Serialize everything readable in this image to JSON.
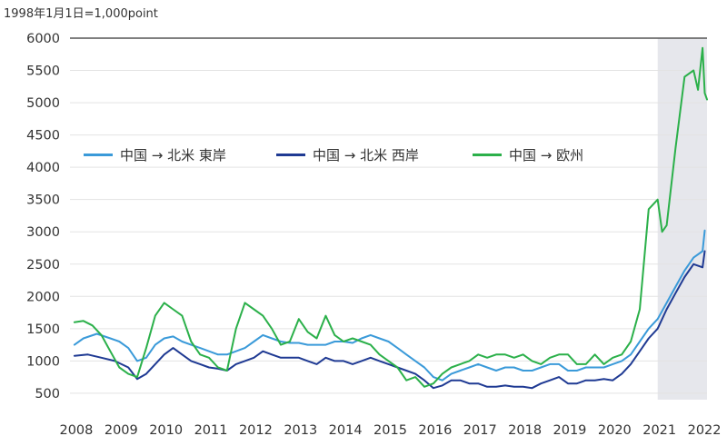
{
  "chart_data": {
    "type": "line",
    "unit_note": "1998年1月1日=1,000point",
    "x": [
      2008,
      2009,
      2010,
      2011,
      2012,
      2013,
      2014,
      2015,
      2016,
      2017,
      2018,
      2019,
      2020,
      2021,
      2022
    ],
    "x_tick_labels": [
      "2008",
      "2009",
      "2010",
      "2011",
      "2012",
      "2013",
      "2014",
      "2015",
      "2016",
      "2017",
      "2018",
      "2019",
      "2020",
      "2021",
      "2022"
    ],
    "y_ticks": [
      500,
      1000,
      1500,
      2000,
      2500,
      3000,
      3500,
      4000,
      4500,
      5000,
      5500,
      6000
    ],
    "y_tick_labels": [
      "500",
      "1000",
      "1500",
      "2000",
      "2500",
      "3000",
      "3500",
      "4000",
      "4500",
      "5000",
      "5500",
      "6000"
    ],
    "xlim": [
      2007.9,
      2022.1
    ],
    "ylim": [
      400,
      6000
    ],
    "shaded_region": [
      2021.0,
      2022.1
    ],
    "grid": "horizontal",
    "legend_position": "upper-left",
    "series": [
      {
        "name": "中国 → 北米 東岸",
        "color": "#3a9ad9",
        "points": [
          [
            2008.0,
            1250
          ],
          [
            2008.2,
            1350
          ],
          [
            2008.5,
            1420
          ],
          [
            2008.8,
            1350
          ],
          [
            2009.0,
            1300
          ],
          [
            2009.2,
            1200
          ],
          [
            2009.4,
            1000
          ],
          [
            2009.6,
            1050
          ],
          [
            2009.8,
            1250
          ],
          [
            2010.0,
            1350
          ],
          [
            2010.2,
            1380
          ],
          [
            2010.4,
            1300
          ],
          [
            2010.6,
            1250
          ],
          [
            2010.8,
            1200
          ],
          [
            2011.0,
            1150
          ],
          [
            2011.2,
            1100
          ],
          [
            2011.4,
            1100
          ],
          [
            2011.6,
            1150
          ],
          [
            2011.8,
            1200
          ],
          [
            2012.0,
            1300
          ],
          [
            2012.2,
            1400
          ],
          [
            2012.4,
            1350
          ],
          [
            2012.6,
            1300
          ],
          [
            2012.8,
            1280
          ],
          [
            2013.0,
            1280
          ],
          [
            2013.2,
            1250
          ],
          [
            2013.4,
            1250
          ],
          [
            2013.6,
            1250
          ],
          [
            2013.8,
            1300
          ],
          [
            2014.0,
            1300
          ],
          [
            2014.2,
            1280
          ],
          [
            2014.4,
            1350
          ],
          [
            2014.6,
            1400
          ],
          [
            2014.8,
            1350
          ],
          [
            2015.0,
            1300
          ],
          [
            2015.2,
            1200
          ],
          [
            2015.4,
            1100
          ],
          [
            2015.6,
            1000
          ],
          [
            2015.8,
            900
          ],
          [
            2016.0,
            750
          ],
          [
            2016.2,
            700
          ],
          [
            2016.4,
            800
          ],
          [
            2016.6,
            850
          ],
          [
            2016.8,
            900
          ],
          [
            2017.0,
            950
          ],
          [
            2017.2,
            900
          ],
          [
            2017.4,
            850
          ],
          [
            2017.6,
            900
          ],
          [
            2017.8,
            900
          ],
          [
            2018.0,
            850
          ],
          [
            2018.2,
            850
          ],
          [
            2018.4,
            900
          ],
          [
            2018.6,
            950
          ],
          [
            2018.8,
            950
          ],
          [
            2019.0,
            850
          ],
          [
            2019.2,
            850
          ],
          [
            2019.4,
            900
          ],
          [
            2019.6,
            900
          ],
          [
            2019.8,
            900
          ],
          [
            2020.0,
            950
          ],
          [
            2020.2,
            1000
          ],
          [
            2020.4,
            1100
          ],
          [
            2020.6,
            1300
          ],
          [
            2020.8,
            1500
          ],
          [
            2021.0,
            1650
          ],
          [
            2021.2,
            1900
          ],
          [
            2021.4,
            2150
          ],
          [
            2021.6,
            2400
          ],
          [
            2021.8,
            2600
          ],
          [
            2022.0,
            2700
          ],
          [
            2022.05,
            3020
          ]
        ]
      },
      {
        "name": "中国 → 北米 西岸",
        "color": "#1f3a93",
        "points": [
          [
            2008.0,
            1080
          ],
          [
            2008.3,
            1100
          ],
          [
            2008.6,
            1050
          ],
          [
            2008.9,
            1000
          ],
          [
            2009.2,
            900
          ],
          [
            2009.4,
            720
          ],
          [
            2009.6,
            800
          ],
          [
            2009.8,
            950
          ],
          [
            2010.0,
            1100
          ],
          [
            2010.2,
            1200
          ],
          [
            2010.4,
            1100
          ],
          [
            2010.6,
            1000
          ],
          [
            2010.8,
            950
          ],
          [
            2011.0,
            900
          ],
          [
            2011.2,
            880
          ],
          [
            2011.4,
            850
          ],
          [
            2011.6,
            950
          ],
          [
            2011.8,
            1000
          ],
          [
            2012.0,
            1050
          ],
          [
            2012.2,
            1150
          ],
          [
            2012.4,
            1100
          ],
          [
            2012.6,
            1050
          ],
          [
            2012.8,
            1050
          ],
          [
            2013.0,
            1050
          ],
          [
            2013.2,
            1000
          ],
          [
            2013.4,
            950
          ],
          [
            2013.6,
            1050
          ],
          [
            2013.8,
            1000
          ],
          [
            2014.0,
            1000
          ],
          [
            2014.2,
            950
          ],
          [
            2014.4,
            1000
          ],
          [
            2014.6,
            1050
          ],
          [
            2014.8,
            1000
          ],
          [
            2015.0,
            950
          ],
          [
            2015.2,
            900
          ],
          [
            2015.4,
            850
          ],
          [
            2015.6,
            800
          ],
          [
            2015.8,
            700
          ],
          [
            2016.0,
            580
          ],
          [
            2016.2,
            620
          ],
          [
            2016.4,
            700
          ],
          [
            2016.6,
            700
          ],
          [
            2016.8,
            650
          ],
          [
            2017.0,
            650
          ],
          [
            2017.2,
            600
          ],
          [
            2017.4,
            600
          ],
          [
            2017.6,
            620
          ],
          [
            2017.8,
            600
          ],
          [
            2018.0,
            600
          ],
          [
            2018.2,
            580
          ],
          [
            2018.4,
            650
          ],
          [
            2018.6,
            700
          ],
          [
            2018.8,
            750
          ],
          [
            2019.0,
            650
          ],
          [
            2019.2,
            650
          ],
          [
            2019.4,
            700
          ],
          [
            2019.6,
            700
          ],
          [
            2019.8,
            720
          ],
          [
            2020.0,
            700
          ],
          [
            2020.2,
            800
          ],
          [
            2020.4,
            950
          ],
          [
            2020.6,
            1150
          ],
          [
            2020.8,
            1350
          ],
          [
            2021.0,
            1500
          ],
          [
            2021.2,
            1800
          ],
          [
            2021.4,
            2050
          ],
          [
            2021.6,
            2300
          ],
          [
            2021.8,
            2500
          ],
          [
            2022.0,
            2450
          ],
          [
            2022.05,
            2700
          ]
        ]
      },
      {
        "name": "中国 → 欧州",
        "color": "#2bb04a",
        "points": [
          [
            2008.0,
            1600
          ],
          [
            2008.2,
            1620
          ],
          [
            2008.4,
            1550
          ],
          [
            2008.6,
            1400
          ],
          [
            2008.8,
            1150
          ],
          [
            2009.0,
            900
          ],
          [
            2009.2,
            800
          ],
          [
            2009.4,
            750
          ],
          [
            2009.6,
            1200
          ],
          [
            2009.8,
            1700
          ],
          [
            2010.0,
            1900
          ],
          [
            2010.2,
            1800
          ],
          [
            2010.4,
            1700
          ],
          [
            2010.6,
            1300
          ],
          [
            2010.8,
            1100
          ],
          [
            2011.0,
            1050
          ],
          [
            2011.2,
            900
          ],
          [
            2011.4,
            850
          ],
          [
            2011.6,
            1500
          ],
          [
            2011.8,
            1900
          ],
          [
            2012.0,
            1800
          ],
          [
            2012.2,
            1700
          ],
          [
            2012.4,
            1500
          ],
          [
            2012.6,
            1250
          ],
          [
            2012.8,
            1300
          ],
          [
            2013.0,
            1650
          ],
          [
            2013.2,
            1450
          ],
          [
            2013.4,
            1350
          ],
          [
            2013.6,
            1700
          ],
          [
            2013.8,
            1400
          ],
          [
            2014.0,
            1300
          ],
          [
            2014.2,
            1350
          ],
          [
            2014.4,
            1300
          ],
          [
            2014.6,
            1250
          ],
          [
            2014.8,
            1100
          ],
          [
            2015.0,
            1000
          ],
          [
            2015.2,
            900
          ],
          [
            2015.4,
            700
          ],
          [
            2015.6,
            750
          ],
          [
            2015.8,
            600
          ],
          [
            2016.0,
            650
          ],
          [
            2016.2,
            800
          ],
          [
            2016.4,
            900
          ],
          [
            2016.6,
            950
          ],
          [
            2016.8,
            1000
          ],
          [
            2017.0,
            1100
          ],
          [
            2017.2,
            1050
          ],
          [
            2017.4,
            1100
          ],
          [
            2017.6,
            1100
          ],
          [
            2017.8,
            1050
          ],
          [
            2018.0,
            1100
          ],
          [
            2018.2,
            1000
          ],
          [
            2018.4,
            950
          ],
          [
            2018.6,
            1050
          ],
          [
            2018.8,
            1100
          ],
          [
            2019.0,
            1100
          ],
          [
            2019.2,
            950
          ],
          [
            2019.4,
            950
          ],
          [
            2019.6,
            1100
          ],
          [
            2019.8,
            950
          ],
          [
            2020.0,
            1050
          ],
          [
            2020.2,
            1100
          ],
          [
            2020.4,
            1300
          ],
          [
            2020.6,
            1800
          ],
          [
            2020.8,
            3350
          ],
          [
            2021.0,
            3500
          ],
          [
            2021.1,
            3000
          ],
          [
            2021.2,
            3100
          ],
          [
            2021.4,
            4300
          ],
          [
            2021.6,
            5400
          ],
          [
            2021.8,
            5500
          ],
          [
            2021.9,
            5200
          ],
          [
            2022.0,
            5850
          ],
          [
            2022.05,
            5150
          ],
          [
            2022.1,
            5050
          ]
        ]
      }
    ]
  }
}
